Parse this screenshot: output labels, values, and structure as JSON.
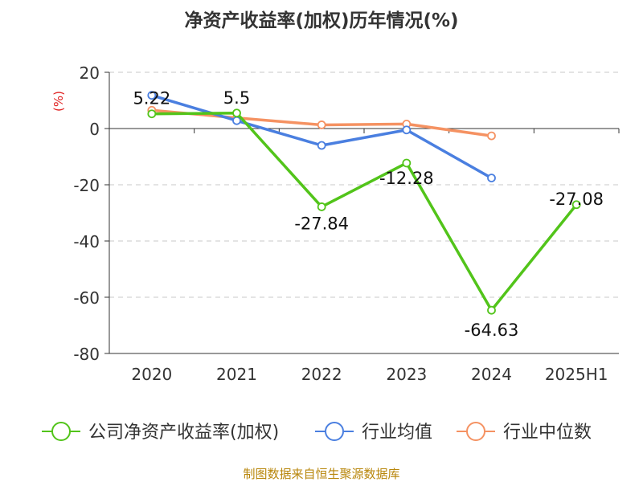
{
  "chart_data": {
    "type": "line",
    "title": "净资产收益率(加权)历年情况(%)",
    "ylabel": "(%)",
    "xlabel": "",
    "categories": [
      "2020",
      "2021",
      "2022",
      "2023",
      "2024",
      "2025H1"
    ],
    "ylim": [
      -80,
      20
    ],
    "yticks": [
      20,
      0,
      -20,
      -40,
      -60,
      -80
    ],
    "grid": true,
    "legend_position": "bottom",
    "series": [
      {
        "name": "公司净资产收益率(加权)",
        "color": "#52c41a",
        "values": [
          5.22,
          5.5,
          -27.84,
          -12.28,
          -64.63,
          -27.08
        ],
        "labels": [
          "5.22",
          "5.5",
          "-27.84",
          "-12.28",
          "-64.63",
          "-27.08"
        ]
      },
      {
        "name": "行业均值",
        "color": "#4a7fe0",
        "values": [
          11.8,
          2.8,
          -6.0,
          -0.5,
          -17.6,
          null
        ]
      },
      {
        "name": "行业中位数",
        "color": "#f59262",
        "values": [
          6.5,
          3.8,
          1.3,
          1.6,
          -2.6,
          null
        ]
      }
    ],
    "source": "制图数据来自恒生聚源数据库"
  }
}
